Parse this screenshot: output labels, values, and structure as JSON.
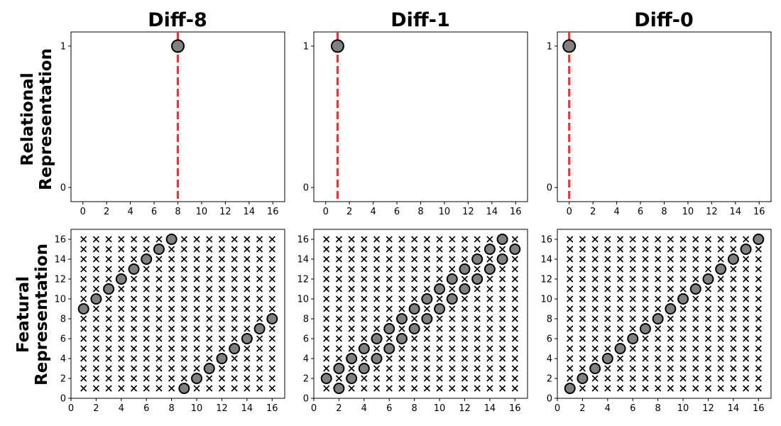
{
  "chart_data": {
    "type": "scatter",
    "column_titles": [
      "Diff-8",
      "Diff-1",
      "Diff-0"
    ],
    "row_labels": [
      [
        "Relational",
        "Representation"
      ],
      [
        "Featural",
        "Representation"
      ]
    ],
    "colors": {
      "marker_fill": "#808080",
      "marker_edge": "#000000",
      "vline": "#f03232",
      "cross": "#000000"
    },
    "relational": {
      "xlim": [
        -1,
        17
      ],
      "ylim": [
        -0.1,
        1.1
      ],
      "xticks": [
        0,
        2,
        4,
        6,
        8,
        10,
        12,
        14,
        16
      ],
      "yticks": [
        0,
        1
      ],
      "panels": [
        {
          "diff": 8,
          "points": [
            {
              "x": 8,
              "y": 1
            }
          ],
          "vline": 8
        },
        {
          "diff": 1,
          "points": [
            {
              "x": 1,
              "y": 1
            }
          ],
          "vline": 1
        },
        {
          "diff": 0,
          "points": [
            {
              "x": 0,
              "y": 1
            }
          ],
          "vline": 0
        }
      ]
    },
    "featural": {
      "xlim": [
        0,
        17
      ],
      "ylim": [
        0,
        17
      ],
      "xticks": [
        0,
        2,
        4,
        6,
        8,
        10,
        12,
        14,
        16
      ],
      "yticks": [
        0,
        2,
        4,
        6,
        8,
        10,
        12,
        14,
        16
      ],
      "grid_markers": "x at every integer position 1–16 on both axes",
      "grid_range": [
        1,
        16
      ],
      "panels": [
        {
          "diff": 8,
          "points": [
            [
              1,
              9
            ],
            [
              2,
              10
            ],
            [
              3,
              11
            ],
            [
              4,
              12
            ],
            [
              5,
              13
            ],
            [
              6,
              14
            ],
            [
              7,
              15
            ],
            [
              8,
              16
            ],
            [
              9,
              1
            ],
            [
              10,
              2
            ],
            [
              11,
              3
            ],
            [
              12,
              4
            ],
            [
              13,
              5
            ],
            [
              14,
              6
            ],
            [
              15,
              7
            ],
            [
              16,
              8
            ]
          ]
        },
        {
          "diff": 1,
          "points": [
            [
              1,
              2
            ],
            [
              2,
              1
            ],
            [
              2,
              3
            ],
            [
              3,
              2
            ],
            [
              3,
              4
            ],
            [
              4,
              3
            ],
            [
              4,
              5
            ],
            [
              5,
              4
            ],
            [
              5,
              6
            ],
            [
              6,
              5
            ],
            [
              6,
              7
            ],
            [
              7,
              6
            ],
            [
              7,
              8
            ],
            [
              8,
              7
            ],
            [
              8,
              9
            ],
            [
              9,
              8
            ],
            [
              9,
              10
            ],
            [
              10,
              9
            ],
            [
              10,
              11
            ],
            [
              11,
              10
            ],
            [
              11,
              12
            ],
            [
              12,
              11
            ],
            [
              12,
              13
            ],
            [
              13,
              12
            ],
            [
              13,
              14
            ],
            [
              14,
              13
            ],
            [
              14,
              15
            ],
            [
              15,
              14
            ],
            [
              15,
              16
            ],
            [
              16,
              15
            ]
          ]
        },
        {
          "diff": 0,
          "points": [
            [
              1,
              1
            ],
            [
              2,
              2
            ],
            [
              3,
              3
            ],
            [
              4,
              4
            ],
            [
              5,
              5
            ],
            [
              6,
              6
            ],
            [
              7,
              7
            ],
            [
              8,
              8
            ],
            [
              9,
              9
            ],
            [
              10,
              10
            ],
            [
              11,
              11
            ],
            [
              12,
              12
            ],
            [
              13,
              13
            ],
            [
              14,
              14
            ],
            [
              15,
              15
            ],
            [
              16,
              16
            ]
          ]
        }
      ]
    }
  }
}
